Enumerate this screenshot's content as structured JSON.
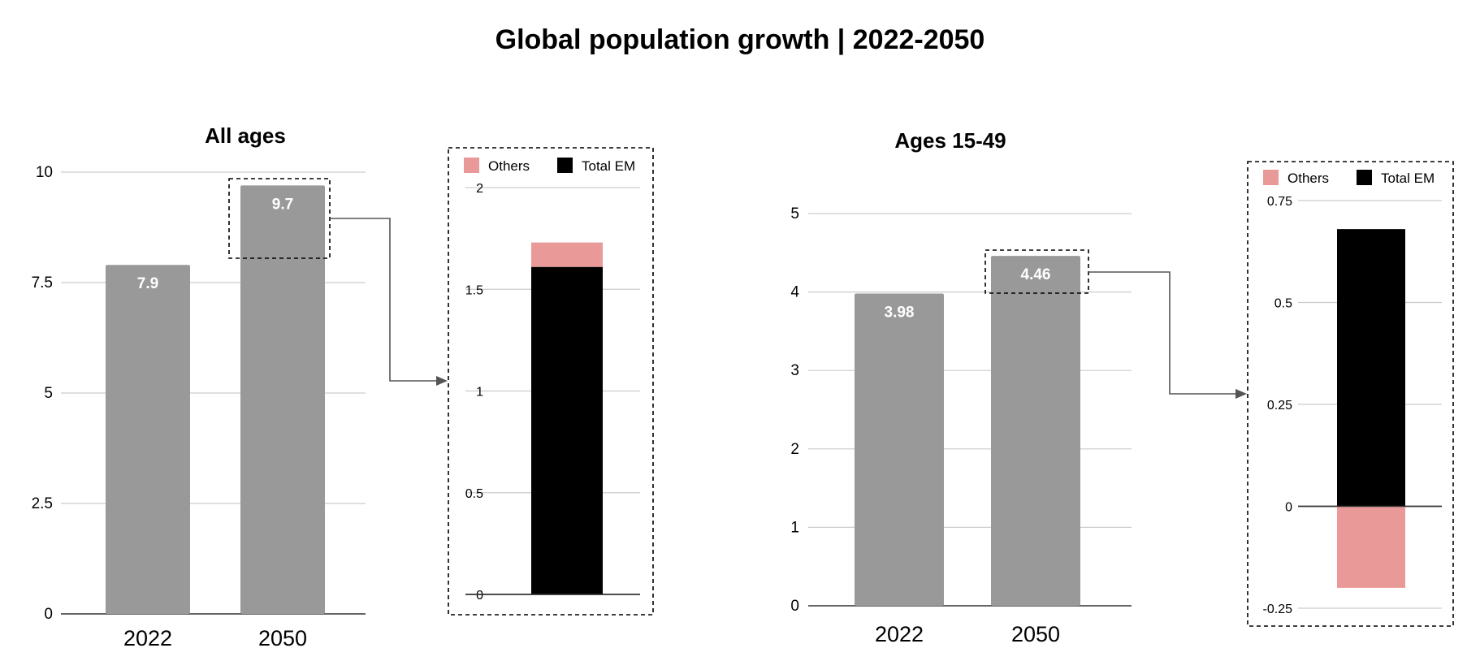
{
  "title": "Global population growth | 2022-2050",
  "colors": {
    "bar": "#999999",
    "others": "#ea9999",
    "total_em": "#000000",
    "grid": "#cccccc",
    "axis": "#333333",
    "connector": "#555555"
  },
  "chart_data": [
    {
      "type": "bar",
      "title": "All ages",
      "categories": [
        "2022",
        "2050"
      ],
      "values": [
        7.9,
        9.7
      ],
      "data_labels": [
        "7.9",
        "9.7"
      ],
      "ylim": [
        0,
        10
      ],
      "yticks": [
        "0",
        "2.5",
        "5",
        "7.5",
        "10"
      ],
      "grid": true,
      "highlighted_category": "2050"
    },
    {
      "type": "bar",
      "stacked": true,
      "title": "",
      "categories": [
        ""
      ],
      "series": [
        {
          "name": "Total EM",
          "values": [
            1.61
          ]
        },
        {
          "name": "Others",
          "values": [
            0.12
          ]
        }
      ],
      "ylim": [
        0,
        2
      ],
      "yticks": [
        "0",
        "0.5",
        "1",
        "1.5",
        "2"
      ],
      "legend": "top",
      "grid": true
    },
    {
      "type": "bar",
      "title": "Ages 15-49",
      "categories": [
        "2022",
        "2050"
      ],
      "values": [
        3.98,
        4.46
      ],
      "data_labels": [
        "3.98",
        "4.46"
      ],
      "ylim": [
        0,
        5
      ],
      "yticks": [
        "0",
        "1",
        "2",
        "3",
        "4",
        "5"
      ],
      "grid": true,
      "highlighted_category": "2050"
    },
    {
      "type": "bar",
      "stacked": true,
      "title": "",
      "categories": [
        ""
      ],
      "series": [
        {
          "name": "Total EM",
          "values": [
            0.68
          ]
        },
        {
          "name": "Others",
          "values": [
            -0.2
          ]
        }
      ],
      "ylim": [
        -0.25,
        0.75
      ],
      "yticks": [
        "-0.25",
        "0",
        "0.25",
        "0.5",
        "0.75"
      ],
      "legend": "top",
      "grid": true
    }
  ]
}
